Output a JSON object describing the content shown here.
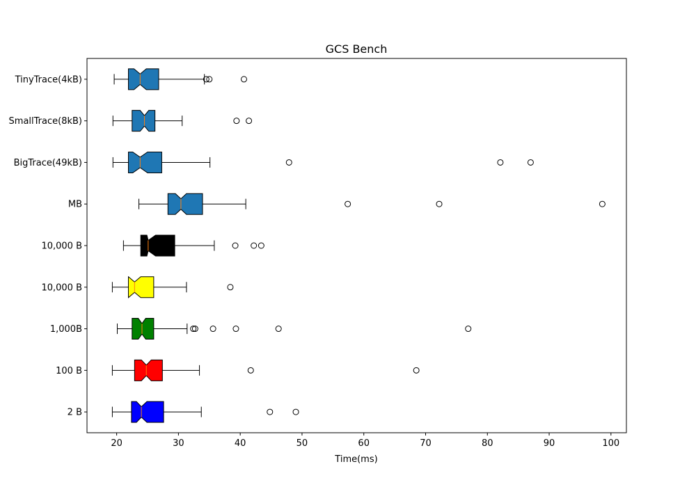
{
  "chart_data": {
    "type": "boxplot",
    "orientation": "horizontal",
    "notched": true,
    "title": "GCS Bench",
    "xlabel": "Time(ms)",
    "ylabel": "",
    "xlim": [
      15.2,
      102.5
    ],
    "xticks": [
      "20",
      "30",
      "40",
      "50",
      "60",
      "70",
      "80",
      "90",
      "100"
    ],
    "xtick_values": [
      20,
      30,
      40,
      50,
      60,
      70,
      80,
      90,
      100
    ],
    "grid": false,
    "median_color": "#ff7f0e",
    "series": [
      {
        "label": "TinyTrace(4kB)",
        "color": "#1f77b4",
        "whisker_low": 19.6,
        "q1": 21.9,
        "median": 23.8,
        "q3": 26.8,
        "whisker_high": 34.2,
        "notch_low": 22.8,
        "notch_high": 24.8,
        "outliers": [
          34.5,
          35.0,
          40.6
        ]
      },
      {
        "label": "SmallTrace(8kB)",
        "color": "#1f77b4",
        "whisker_low": 19.4,
        "q1": 22.5,
        "median": 24.5,
        "q3": 26.2,
        "whisker_high": 30.6,
        "notch_low": 23.8,
        "notch_high": 25.2,
        "outliers": [
          39.4,
          41.4
        ]
      },
      {
        "label": "BigTrace(49kB)",
        "color": "#1f77b4",
        "whisker_low": 19.4,
        "q1": 21.9,
        "median": 23.8,
        "q3": 27.3,
        "whisker_high": 35.1,
        "notch_low": 22.6,
        "notch_high": 25.0,
        "outliers": [
          47.9,
          82.1,
          87.0
        ]
      },
      {
        "label": "MB",
        "color": "#1f77b4",
        "whisker_low": 23.6,
        "q1": 28.3,
        "median": 30.4,
        "q3": 33.9,
        "whisker_high": 40.9,
        "notch_low": 29.5,
        "notch_high": 31.3,
        "outliers": [
          57.4,
          72.2,
          98.6
        ]
      },
      {
        "label": "10,000 B",
        "color": "#000000",
        "whisker_low": 21.1,
        "q1": 23.9,
        "median": 25.1,
        "q3": 29.4,
        "whisker_high": 35.8,
        "notch_low": 24.9,
        "notch_high": 26.3,
        "outliers": [
          39.2,
          42.2,
          43.4
        ]
      },
      {
        "label": "10,000 B",
        "color": "#ffff00",
        "whisker_low": 19.3,
        "q1": 21.9,
        "median": 22.9,
        "q3": 26.0,
        "whisker_high": 31.3,
        "notch_low": 21.9,
        "notch_high": 23.9,
        "outliers": [
          38.4
        ]
      },
      {
        "label": "1,000B",
        "color": "#008000",
        "whisker_low": 20.1,
        "q1": 22.5,
        "median": 24.1,
        "q3": 26.0,
        "whisker_high": 31.4,
        "notch_low": 23.5,
        "notch_high": 24.7,
        "outliers": [
          32.4,
          32.7,
          35.6,
          39.3,
          46.2,
          76.9
        ]
      },
      {
        "label": "100 B",
        "color": "#ff0000",
        "whisker_low": 19.3,
        "q1": 22.9,
        "median": 24.8,
        "q3": 27.4,
        "whisker_high": 33.4,
        "notch_low": 24.0,
        "notch_high": 25.6,
        "outliers": [
          41.7,
          68.5
        ]
      },
      {
        "label": "2 B",
        "color": "#0000ff",
        "whisker_low": 19.3,
        "q1": 22.4,
        "median": 24.0,
        "q3": 27.6,
        "whisker_high": 33.7,
        "notch_low": 23.2,
        "notch_high": 24.9,
        "outliers": [
          44.8,
          49.0
        ]
      }
    ]
  }
}
